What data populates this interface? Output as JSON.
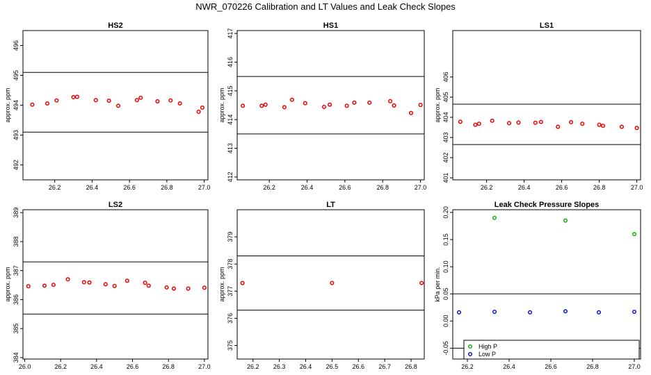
{
  "title": "NWR_070226  Calibration and LT Values and Leak Check Slopes",
  "colors": {
    "cal_points": "#ee0000",
    "high_p": "#00b000",
    "low_p": "#0000cc",
    "lines": "#000000"
  },
  "chart_data": [
    {
      "type": "scatter",
      "title": "HS2",
      "ylabel": "approx. ppm",
      "xlim": [
        26.03,
        27.02
      ],
      "ylim": [
        491.5,
        496.5
      ],
      "xticks": [
        "26.2",
        "26.4",
        "26.6",
        "26.8",
        "27.0"
      ],
      "yticks": [
        "492",
        "493",
        "494",
        "495",
        "496"
      ],
      "hlines": [
        495.1,
        493.1
      ],
      "grid": false,
      "x": [
        26.08,
        26.16,
        26.21,
        26.3,
        26.32,
        26.42,
        26.49,
        26.54,
        26.64,
        26.66,
        26.75,
        26.82,
        26.87,
        26.97,
        26.99
      ],
      "y": [
        494.02,
        494.06,
        494.16,
        494.27,
        494.28,
        494.17,
        494.15,
        493.98,
        494.17,
        494.25,
        494.13,
        494.16,
        494.06,
        493.78,
        493.92
      ]
    },
    {
      "type": "scatter",
      "title": "HS1",
      "ylabel": "approx. ppm",
      "xlim": [
        26.03,
        27.02
      ],
      "ylim": [
        411.9,
        417.1
      ],
      "xticks": [
        "26.2",
        "26.4",
        "26.6",
        "26.8",
        "27.0"
      ],
      "yticks": [
        "412",
        "413",
        "414",
        "415",
        "416",
        "417"
      ],
      "hlines": [
        415.5,
        413.5
      ],
      "grid": false,
      "x": [
        26.06,
        26.16,
        26.18,
        26.28,
        26.32,
        26.39,
        26.49,
        26.52,
        26.61,
        26.65,
        26.73,
        26.84,
        26.86,
        26.95,
        27.0
      ],
      "y": [
        414.48,
        414.48,
        414.52,
        414.43,
        414.69,
        414.57,
        414.44,
        414.52,
        414.48,
        414.59,
        414.59,
        414.64,
        414.49,
        414.23,
        414.51
      ]
    },
    {
      "type": "scatter",
      "title": "LS1",
      "ylabel": "approx. ppm",
      "xlim": [
        26.02,
        27.02
      ],
      "ylim": [
        400.9,
        408.3
      ],
      "xticks": [
        "26.2",
        "26.4",
        "26.6",
        "26.8",
        "27.0"
      ],
      "yticks": [
        "401",
        "402",
        "403",
        "404",
        "405",
        "406"
      ],
      "hlines": [
        404.65,
        402.65
      ],
      "grid": false,
      "x": [
        26.06,
        26.14,
        26.16,
        26.23,
        26.32,
        26.37,
        26.46,
        26.49,
        26.58,
        26.65,
        26.71,
        26.8,
        26.82,
        26.92,
        27.0
      ],
      "y": [
        403.78,
        403.63,
        403.68,
        403.83,
        403.71,
        403.74,
        403.73,
        403.77,
        403.53,
        403.76,
        403.68,
        403.63,
        403.58,
        403.53,
        403.47
      ]
    },
    {
      "type": "scatter",
      "title": "LS2",
      "ylabel": "approx. ppm",
      "xlim": [
        25.99,
        27.02
      ],
      "ylim": [
        383.95,
        389.1
      ],
      "xticks": [
        "26.0",
        "26.2",
        "26.4",
        "26.6",
        "26.8",
        "27.0"
      ],
      "yticks": [
        "384",
        "385",
        "386",
        "387",
        "388",
        "389"
      ],
      "hlines": [
        387.3,
        385.5
      ],
      "grid": false,
      "x": [
        26.02,
        26.11,
        26.16,
        26.24,
        26.33,
        26.36,
        26.45,
        26.5,
        26.57,
        26.67,
        26.69,
        26.79,
        26.83,
        26.91,
        27.0
      ],
      "y": [
        386.46,
        386.48,
        386.51,
        386.7,
        386.6,
        386.59,
        386.53,
        386.47,
        386.65,
        386.58,
        386.48,
        386.42,
        386.38,
        386.38,
        386.41
      ]
    },
    {
      "type": "scatter",
      "title": "LT",
      "ylabel": "approx. ppm",
      "xlim": [
        26.14,
        26.85
      ],
      "ylim": [
        374.5,
        380.0
      ],
      "xticks": [
        "26.2",
        "26.3",
        "26.4",
        "26.5",
        "26.6",
        "26.7",
        "26.8"
      ],
      "yticks": [
        "375",
        "376",
        "377",
        "378",
        "379"
      ],
      "hlines": [
        378.3,
        376.3
      ],
      "grid": false,
      "x": [
        26.16,
        26.5,
        26.84
      ],
      "y": [
        377.3,
        377.3,
        377.3
      ]
    },
    {
      "type": "scatter",
      "title": "Leak Check Pressure Slopes",
      "ylabel": "kPa per min.",
      "xlim": [
        26.13,
        27.03
      ],
      "ylim": [
        -0.07,
        0.205
      ],
      "xticks": [
        "26.2",
        "26.4",
        "26.6",
        "26.8",
        "27.0"
      ],
      "yticks": [
        "-0.05",
        "0.00",
        "0.05",
        "0.10",
        "0.15",
        "0.20"
      ],
      "hlines": [
        0.05,
        -0.05
      ],
      "grid": false,
      "legend_position": "bottom-left",
      "series": [
        {
          "name": "High P",
          "x": [
            26.33,
            26.67,
            27.0
          ],
          "y": [
            0.19,
            0.185,
            0.16
          ]
        },
        {
          "name": "Low P",
          "x": [
            26.16,
            26.33,
            26.5,
            26.67,
            26.83,
            27.0
          ],
          "y": [
            0.016,
            0.017,
            0.016,
            0.018,
            0.016,
            0.017
          ]
        }
      ]
    }
  ]
}
